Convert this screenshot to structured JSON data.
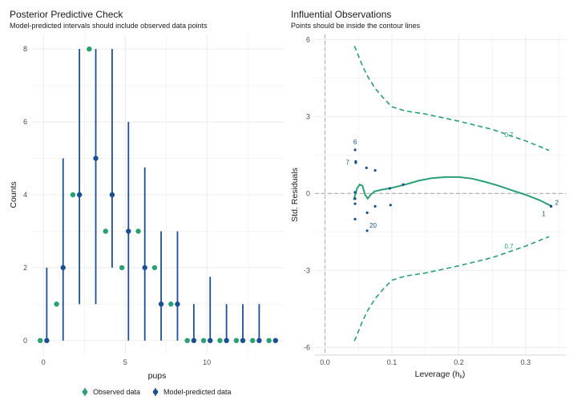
{
  "colors": {
    "observed": "#27a074",
    "predicted": "#1a4f94",
    "grid": "#ebebeb",
    "ref": "#b3b3b3"
  },
  "chart_data": [
    {
      "type": "scatter",
      "title": "Posterior Predictive Check",
      "subtitle": "Model-predicted intervals should include observed data points",
      "xlabel": "pups",
      "ylabel": "Counts",
      "xlim": [
        -0.7,
        14.7
      ],
      "ylim": [
        -0.4,
        8.4
      ],
      "x_ticks": [
        0,
        5,
        10
      ],
      "y_ticks": [
        0,
        2,
        4,
        6,
        8
      ],
      "grid": true,
      "legend_position": "bottom",
      "series": [
        {
          "name": "Observed data",
          "x": [
            0,
            1,
            2,
            3,
            4,
            5,
            6,
            7,
            8,
            9,
            10,
            11,
            12,
            13,
            14
          ],
          "values": [
            0,
            1,
            4,
            8,
            3,
            2,
            3,
            2,
            1,
            0,
            0,
            0,
            0,
            0,
            0
          ]
        },
        {
          "name": "Model-predicted data",
          "x": [
            0,
            1,
            2,
            3,
            4,
            5,
            6,
            7,
            8,
            9,
            10,
            11,
            12,
            13,
            14
          ],
          "values": [
            0,
            2,
            4,
            5,
            4,
            3,
            2,
            1,
            1,
            0,
            0,
            0,
            0,
            0,
            0
          ],
          "low": [
            0,
            0,
            1,
            1,
            2,
            0,
            0,
            0,
            0,
            0,
            0,
            0,
            0,
            0,
            0
          ],
          "high": [
            2,
            5,
            8,
            8,
            8,
            6,
            4.75,
            3,
            3,
            1,
            1.75,
            1,
            1,
            1,
            0
          ]
        }
      ]
    },
    {
      "type": "scatter",
      "title": "Influential Observations",
      "subtitle": "Points should be inside the contour lines",
      "xlabel": "Leverage (h",
      "xlabel_sub": "ii",
      "xlabel_tail": ")",
      "ylabel": "Std. Residuals",
      "xlim": [
        -0.015,
        0.36
      ],
      "ylim": [
        -6.3,
        6.2
      ],
      "x_ticks": [
        "0.0",
        "0.1",
        "0.2",
        "0.3"
      ],
      "x_tick_values": [
        0,
        0.1,
        0.2,
        0.3
      ],
      "y_ticks": [
        "-6",
        "-3",
        "0",
        "3",
        "6"
      ],
      "y_tick_values": [
        -6,
        -3,
        0,
        3,
        6
      ],
      "grid": true,
      "points": [
        {
          "x": 0.045,
          "y": 1.7,
          "label": "6"
        },
        {
          "x": 0.046,
          "y": 1.25,
          "label": "7"
        },
        {
          "x": 0.046,
          "y": 1.2,
          "label": ""
        },
        {
          "x": 0.045,
          "y": 0.05,
          "label": ""
        },
        {
          "x": 0.045,
          "y": -0.2,
          "label": ""
        },
        {
          "x": 0.045,
          "y": -0.4,
          "label": ""
        },
        {
          "x": 0.045,
          "y": -1.0,
          "label": ""
        },
        {
          "x": 0.062,
          "y": 1.0,
          "label": ""
        },
        {
          "x": 0.075,
          "y": 0.9,
          "label": ""
        },
        {
          "x": 0.063,
          "y": -0.75,
          "label": ""
        },
        {
          "x": 0.075,
          "y": -0.5,
          "label": ""
        },
        {
          "x": 0.098,
          "y": -0.45,
          "label": ""
        },
        {
          "x": 0.097,
          "y": 0.2,
          "label": ""
        },
        {
          "x": 0.117,
          "y": 0.35,
          "label": ""
        },
        {
          "x": 0.063,
          "y": -1.45,
          "label": "20"
        },
        {
          "x": 0.338,
          "y": -0.5,
          "label": "1"
        },
        {
          "x": 0.338,
          "y": -0.5,
          "label": "2"
        }
      ],
      "loess": [
        [
          0.043,
          -0.25
        ],
        [
          0.048,
          0.2
        ],
        [
          0.052,
          0.35
        ],
        [
          0.056,
          0.3
        ],
        [
          0.06,
          -0.05
        ],
        [
          0.064,
          -0.2
        ],
        [
          0.068,
          -0.05
        ],
        [
          0.074,
          0.08
        ],
        [
          0.085,
          0.15
        ],
        [
          0.1,
          0.22
        ],
        [
          0.12,
          0.35
        ],
        [
          0.14,
          0.5
        ],
        [
          0.16,
          0.6
        ],
        [
          0.18,
          0.64
        ],
        [
          0.2,
          0.64
        ],
        [
          0.22,
          0.58
        ],
        [
          0.24,
          0.45
        ],
        [
          0.26,
          0.3
        ],
        [
          0.28,
          0.12
        ],
        [
          0.3,
          -0.05
        ],
        [
          0.32,
          -0.25
        ],
        [
          0.338,
          -0.48
        ]
      ],
      "contour_upper": [
        [
          0.044,
          5.75
        ],
        [
          0.048,
          5.5
        ],
        [
          0.055,
          5.05
        ],
        [
          0.063,
          4.6
        ],
        [
          0.075,
          4.1
        ],
        [
          0.088,
          3.7
        ],
        [
          0.1,
          3.38
        ],
        [
          0.12,
          3.22
        ],
        [
          0.15,
          3.1
        ],
        [
          0.2,
          2.82
        ],
        [
          0.25,
          2.5
        ],
        [
          0.3,
          2.05
        ],
        [
          0.335,
          1.68
        ]
      ],
      "contour_lower": [
        [
          0.044,
          -5.75
        ],
        [
          0.048,
          -5.5
        ],
        [
          0.055,
          -5.05
        ],
        [
          0.063,
          -4.6
        ],
        [
          0.075,
          -4.1
        ],
        [
          0.088,
          -3.7
        ],
        [
          0.1,
          -3.38
        ],
        [
          0.12,
          -3.22
        ],
        [
          0.15,
          -3.1
        ],
        [
          0.2,
          -2.82
        ],
        [
          0.25,
          -2.5
        ],
        [
          0.3,
          -2.05
        ],
        [
          0.335,
          -1.68
        ]
      ],
      "contour_label": "0.7",
      "contour_label_upper": {
        "x": 0.275,
        "y": 2.2
      },
      "contour_label_lower": {
        "x": 0.275,
        "y": -2.15
      }
    }
  ]
}
